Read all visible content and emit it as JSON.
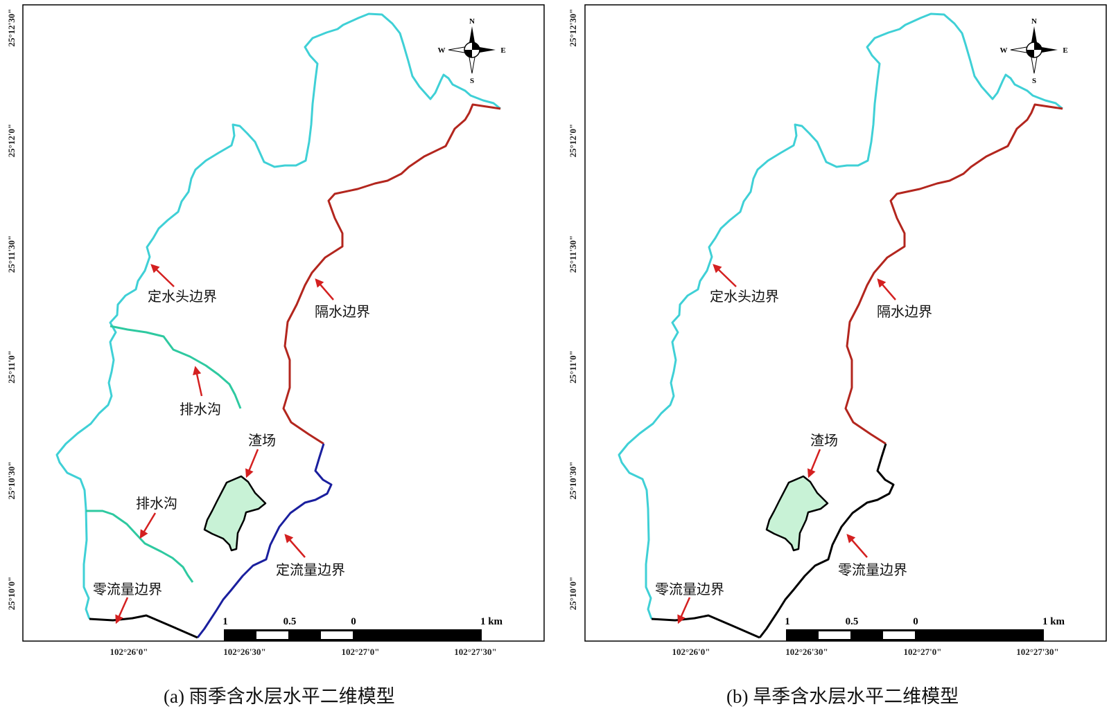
{
  "panel_a": {
    "caption": "(a) 雨季含水层水平二维模型",
    "lat_labels": [
      "25°12'30\"",
      "25°12'0\"",
      "25°11'30\"",
      "25°11'0\"",
      "25°10'30\"",
      "25°10'0\""
    ],
    "lon_labels": [
      "102°26'0\"",
      "102°26'30\"",
      "102°27'0\"",
      "102°27'30\""
    ],
    "annotations": {
      "constant_head": "定水头边界",
      "no_flow_north": "隔水边界",
      "drain_upper": "排水沟",
      "drain_lower": "排水沟",
      "slag": "渣场",
      "constant_flux": "定流量边界",
      "zero_flux": "零流量边界"
    }
  },
  "panel_b": {
    "caption": "(b) 旱季含水层水平二维模型",
    "lat_labels": [
      "25°12'30\"",
      "25°12'0\"",
      "25°11'30\"",
      "25°11'0\"",
      "25°10'30\"",
      "25°10'0\""
    ],
    "lon_labels": [
      "102°26'0\"",
      "102°26'30\"",
      "102°27'0\"",
      "102°27'30\""
    ],
    "annotations": {
      "constant_head": "定水头边界",
      "no_flow_north": "隔水边界",
      "slag": "渣场",
      "zero_flux_east": "零流量边界",
      "zero_flux_south": "零流量边界"
    }
  },
  "scale_bar": {
    "labels": [
      "1",
      "0.5",
      "0",
      "1 km"
    ]
  },
  "compass": {
    "n": "N",
    "s": "S",
    "e": "E",
    "w": "W"
  },
  "colors": {
    "constant_head": "#3fd0d6",
    "no_flow": "#b3261e",
    "constant_flux": "#1a1f9e",
    "zero_flux": "#000000",
    "drain": "#2ec9a0",
    "slag_fill": "#c8f2d6",
    "arrow": "#d42020"
  }
}
